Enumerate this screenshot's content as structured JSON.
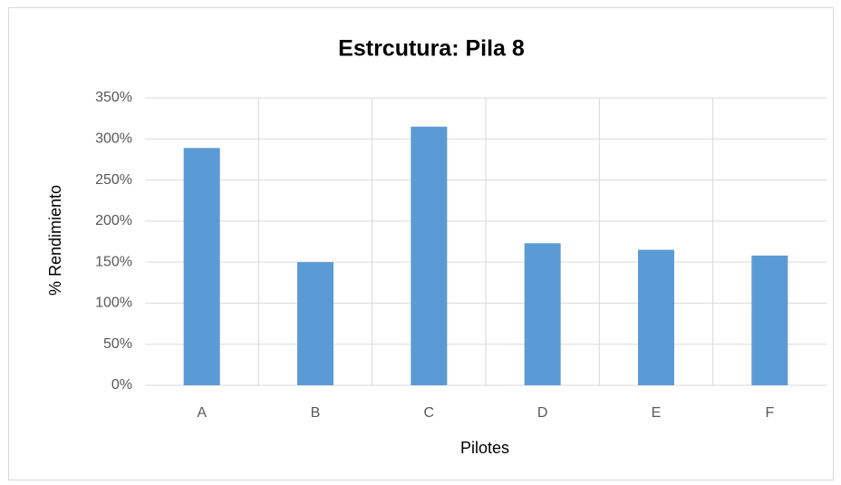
{
  "chart_data": {
    "type": "bar",
    "title": "Estrcutura: Pila 8",
    "x_label": "Pilotes",
    "y_label": "% Rendimiento",
    "categories": [
      "A",
      "B",
      "C",
      "D",
      "E",
      "F"
    ],
    "values": [
      289,
      150,
      315,
      173,
      165,
      158
    ],
    "color": "#5b9bd5",
    "ylim": [
      0,
      350
    ],
    "yticks": [
      {
        "value": 0,
        "label": "0%"
      },
      {
        "value": 50,
        "label": "50%"
      },
      {
        "value": 100,
        "label": "100%"
      },
      {
        "value": 150,
        "label": "150%"
      },
      {
        "value": 200,
        "label": "200%"
      },
      {
        "value": 250,
        "label": "250%"
      },
      {
        "value": 300,
        "label": "300%"
      },
      {
        "value": 350,
        "label": "350%"
      }
    ],
    "grid": true
  }
}
